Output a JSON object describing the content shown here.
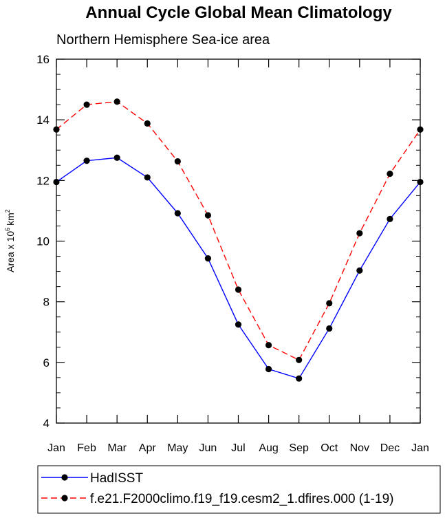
{
  "title": "Annual Cycle Global Mean Climatology",
  "subtitle": "Northern Hemisphere Sea-ice area",
  "chart_data": {
    "type": "line",
    "title": "Annual Cycle Global Mean Climatology",
    "subtitle": "Northern Hemisphere Sea-ice area",
    "ylabel": "Area x 10",
    "ylabel_exponent": "6",
    "ylabel_unit": "km",
    "ylabel_unit_exponent": "2",
    "ylim": [
      4,
      16
    ],
    "yticks": [
      "4",
      "6",
      "8",
      "10",
      "12",
      "14",
      "16"
    ],
    "categories": [
      "Jan",
      "Feb",
      "Mar",
      "Apr",
      "May",
      "Jun",
      "Jul",
      "Aug",
      "Sep",
      "Oct",
      "Nov",
      "Dec",
      "Jan"
    ],
    "series": [
      {
        "name": "HadISST",
        "color": "#0000ff",
        "dash": "solid",
        "marker": "filled-circle",
        "values": [
          11.95,
          12.65,
          12.75,
          12.1,
          10.92,
          9.43,
          7.25,
          5.78,
          5.47,
          7.12,
          9.03,
          10.73,
          11.95
        ]
      },
      {
        "name": "f.e21.F2000climo.f19_f19.cesm2_1.dfires.000 (1-19)",
        "color": "#ff0000",
        "dash": "dashed",
        "marker": "filled-circle",
        "values": [
          13.68,
          14.5,
          14.6,
          13.88,
          12.63,
          10.85,
          8.4,
          6.57,
          6.08,
          7.95,
          10.26,
          12.22,
          13.68
        ]
      }
    ],
    "grid": false,
    "legend_position": "bottom"
  }
}
